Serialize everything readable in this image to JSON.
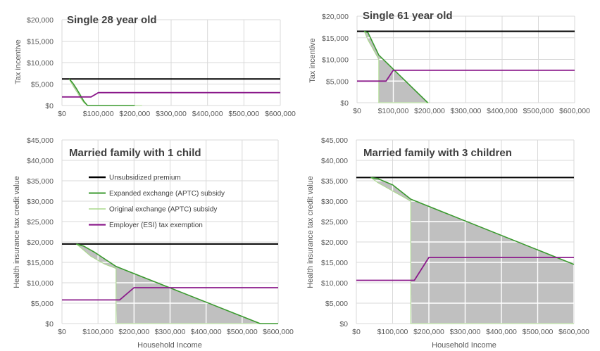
{
  "colors": {
    "unsubsidized": "#000000",
    "expanded": "#3a9a2e",
    "original": "#a9d98c",
    "employer": "#8b1a8b",
    "fill": "#c0c0c0",
    "grid": "#d9d9d9"
  },
  "chart_data": [
    {
      "type": "line",
      "title": "Single 28 year old",
      "xlabel": "",
      "ylabel": "Tax incentive",
      "xlim": [
        0,
        600000
      ],
      "ylim": [
        0,
        20000
      ],
      "x_ticks": [
        0,
        100000,
        200000,
        300000,
        400000,
        500000,
        600000
      ],
      "x_tick_labels": [
        "$0",
        "$100,000",
        "$200,000",
        "$300,000",
        "$400,000",
        "$500,000",
        "$600,000"
      ],
      "y_ticks": [
        0,
        5000,
        10000,
        15000,
        20000
      ],
      "y_tick_labels": [
        "$0",
        "$5,000",
        "$10,000",
        "$15,000",
        "$20,000"
      ],
      "series": [
        {
          "name": "Unsubsidized premium",
          "key": "unsubsidized",
          "x": [
            0,
            600000
          ],
          "y": [
            6200,
            6200
          ]
        },
        {
          "name": "Expanded exchange (APTC) subsidy",
          "key": "expanded",
          "x": [
            20000,
            30000,
            40000,
            50000,
            60000,
            70000,
            200000
          ],
          "y": [
            6200,
            5200,
            3900,
            2500,
            1000,
            0,
            0
          ]
        },
        {
          "name": "Original exchange (APTC) subsidy",
          "key": "original",
          "x": [
            20000,
            30000,
            40000,
            50000,
            60000,
            70000,
            220000
          ],
          "y": [
            6200,
            4600,
            3300,
            1900,
            700,
            0,
            0
          ]
        },
        {
          "name": "Employer (ESI) tax exemption",
          "key": "employer",
          "x": [
            0,
            80000,
            100000,
            600000
          ],
          "y": [
            2000,
            2000,
            3000,
            3000
          ]
        }
      ]
    },
    {
      "type": "line",
      "title": "Single 61 year old",
      "xlabel": "",
      "ylabel": "Tax incentive",
      "xlim": [
        0,
        600000
      ],
      "ylim": [
        0,
        20000
      ],
      "x_ticks": [
        0,
        100000,
        200000,
        300000,
        400000,
        500000,
        600000
      ],
      "x_tick_labels": [
        "$0",
        "$100,000",
        "$200,000",
        "$300,000",
        "$400,000",
        "$500,000",
        "$600,000"
      ],
      "y_ticks": [
        0,
        5000,
        10000,
        15000,
        20000
      ],
      "y_tick_labels": [
        "$0",
        "$5,000",
        "$10,000",
        "$15,000",
        "$20,000"
      ],
      "series": [
        {
          "name": "Unsubsidized premium",
          "key": "unsubsidized",
          "x": [
            0,
            600000
          ],
          "y": [
            16500,
            16500
          ]
        },
        {
          "name": "Expanded exchange (APTC) subsidy",
          "key": "expanded",
          "x": [
            20000,
            30000,
            60000,
            195000
          ],
          "y": [
            16500,
            16200,
            11000,
            0
          ]
        },
        {
          "name": "Original exchange (APTC) subsidy",
          "key": "original",
          "x": [
            20000,
            30000,
            40000,
            50000,
            60000,
            60000,
            200000
          ],
          "y": [
            16500,
            14500,
            13000,
            11500,
            10000,
            0,
            0
          ]
        },
        {
          "name": "Employer (ESI) tax exemption",
          "key": "employer",
          "x": [
            0,
            80000,
            100000,
            600000
          ],
          "y": [
            5000,
            5000,
            7500,
            7500
          ]
        }
      ]
    },
    {
      "type": "line",
      "title": "Married family with 1 child",
      "xlabel": "Household Income",
      "ylabel": "Health insurance tax credit value",
      "xlim": [
        0,
        600000
      ],
      "ylim": [
        0,
        45000
      ],
      "x_ticks": [
        0,
        100000,
        200000,
        300000,
        400000,
        500000,
        600000
      ],
      "x_tick_labels": [
        "$0",
        "$100,000",
        "$200,000",
        "$300,000",
        "$400,000",
        "$500,000",
        "$600,000"
      ],
      "y_ticks": [
        0,
        5000,
        10000,
        15000,
        20000,
        25000,
        30000,
        35000,
        40000,
        45000
      ],
      "y_tick_labels": [
        "$0",
        "$5,000",
        "$10,000",
        "$15,000",
        "$20,000",
        "$25,000",
        "$30,000",
        "$35,000",
        "$40,000",
        "$45,000"
      ],
      "series": [
        {
          "name": "Unsubsidized premium",
          "key": "unsubsidized",
          "x": [
            0,
            600000
          ],
          "y": [
            19500,
            19500
          ]
        },
        {
          "name": "Expanded exchange (APTC) subsidy",
          "key": "expanded",
          "x": [
            40000,
            60000,
            90000,
            150000,
            550000,
            600000
          ],
          "y": [
            19500,
            19000,
            17500,
            14000,
            0,
            0
          ]
        },
        {
          "name": "Original exchange (APTC) subsidy",
          "key": "original",
          "x": [
            40000,
            60000,
            80000,
            100000,
            120000,
            150000,
            150000,
            600000
          ],
          "y": [
            19500,
            18000,
            16500,
            15500,
            14500,
            13500,
            0,
            0
          ]
        },
        {
          "name": "Employer (ESI) tax exemption",
          "key": "employer",
          "x": [
            0,
            160000,
            200000,
            600000
          ],
          "y": [
            5800,
            5800,
            8800,
            8800
          ]
        }
      ],
      "legend": {
        "placement": "upper-left",
        "entries": [
          "Unsubsidized premium",
          "Expanded exchange (APTC) subsidy",
          "Original exchange (APTC) subsidy",
          "Employer (ESI) tax exemption"
        ]
      }
    },
    {
      "type": "line",
      "title": "Married family with 3 children",
      "xlabel": "Household Income",
      "ylabel": "Health insurance tax credit value",
      "xlim": [
        0,
        600000
      ],
      "ylim": [
        0,
        45000
      ],
      "x_ticks": [
        0,
        100000,
        200000,
        300000,
        400000,
        500000,
        600000
      ],
      "x_tick_labels": [
        "$0",
        "$100,000",
        "$200,000",
        "$300,000",
        "$400,000",
        "$500,000",
        "$600,000"
      ],
      "y_ticks": [
        0,
        5000,
        10000,
        15000,
        20000,
        25000,
        30000,
        35000,
        40000,
        45000
      ],
      "y_tick_labels": [
        "$0",
        "$5,000",
        "$10,000",
        "$15,000",
        "$20,000",
        "$25,000",
        "$30,000",
        "$35,000",
        "$40,000",
        "$45,000"
      ],
      "series": [
        {
          "name": "Unsubsidized premium",
          "key": "unsubsidized",
          "x": [
            0,
            600000
          ],
          "y": [
            35800,
            35800
          ]
        },
        {
          "name": "Expanded exchange (APTC) subsidy",
          "key": "expanded",
          "x": [
            40000,
            60000,
            100000,
            150000,
            600000
          ],
          "y": [
            35800,
            35500,
            34000,
            30500,
            14500
          ]
        },
        {
          "name": "Original exchange (APTC) subsidy",
          "key": "original",
          "x": [
            40000,
            60000,
            80000,
            110000,
            130000,
            150000,
            150000,
            600000
          ],
          "y": [
            35800,
            34500,
            33500,
            32000,
            31000,
            30000,
            0,
            0
          ]
        },
        {
          "name": "Employer (ESI) tax exemption",
          "key": "employer",
          "x": [
            0,
            160000,
            200000,
            600000
          ],
          "y": [
            10600,
            10600,
            16200,
            16200
          ]
        }
      ]
    }
  ]
}
